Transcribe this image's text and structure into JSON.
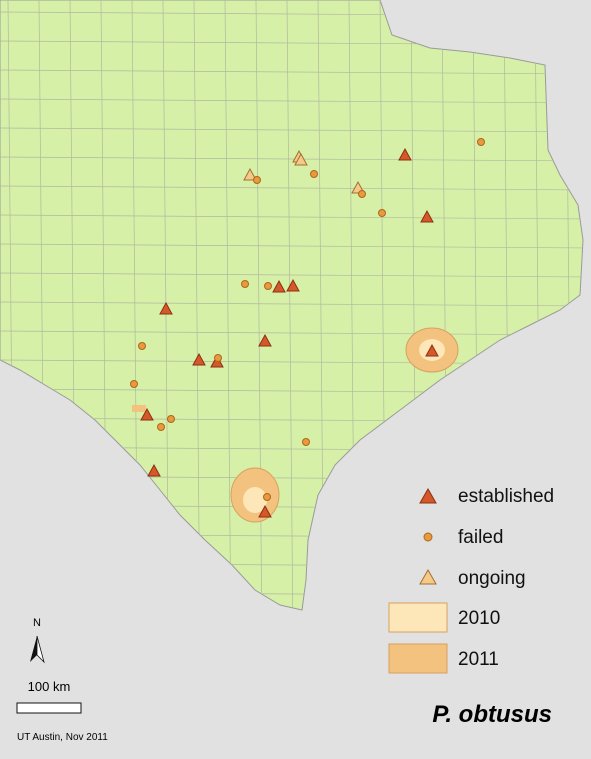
{
  "legend": {
    "items": [
      {
        "label": "established"
      },
      {
        "label": "failed"
      },
      {
        "label": "ongoing"
      },
      {
        "label": "2010"
      },
      {
        "label": "2011"
      }
    ]
  },
  "north_arrow": {
    "label": "N"
  },
  "scale_bar": {
    "label": "100 km"
  },
  "credit": "UT Austin, Nov 2011",
  "title": "P. obtusus"
}
